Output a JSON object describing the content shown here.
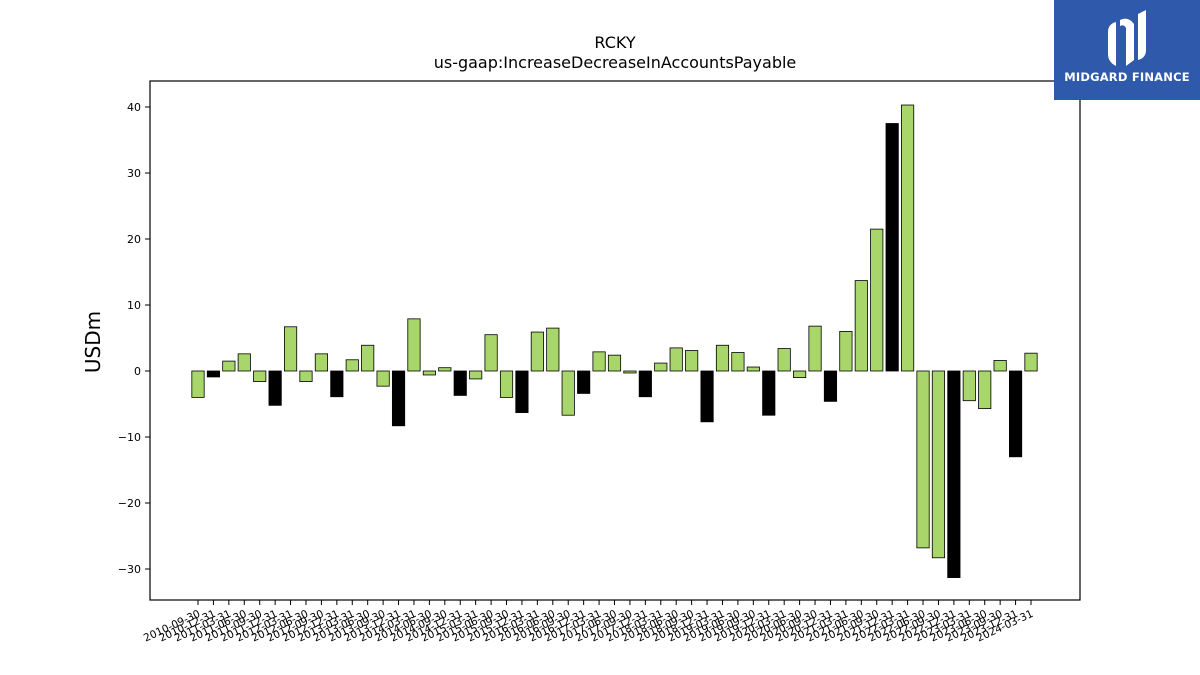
{
  "brand": {
    "name": "MIDGARD FINANCE",
    "bg_color": "#2f5aab"
  },
  "chart_data": {
    "type": "bar",
    "title": "RCKY",
    "subtitle": "us-gaap:IncreaseDecreaseInAccountsPayable",
    "xlabel": "",
    "ylabel": "USDm",
    "ylim": [
      -35,
      44
    ],
    "yticks": [
      40,
      30,
      20,
      10,
      0,
      -10,
      -20,
      -30
    ],
    "ytick_labels": [
      "40",
      "30",
      "20",
      "10",
      "0",
      "−10",
      "−20",
      "−30"
    ],
    "grid": false,
    "colors": {
      "quarterly": "#a9d66a",
      "annual": "#000000"
    },
    "categories": [
      "2010-09-30",
      "2010-12-31",
      "2011-03-31",
      "2011-06-30",
      "2011-09-30",
      "2011-12-31",
      "2012-03-31",
      "2012-06-30",
      "2012-09-30",
      "2012-12-31",
      "2013-03-31",
      "2013-06-30",
      "2013-09-30",
      "2013-12-31",
      "2014-03-31",
      "2014-06-30",
      "2014-09-30",
      "2014-12-31",
      "2015-03-31",
      "2015-06-30",
      "2015-09-30",
      "2015-12-31",
      "2016-03-31",
      "2016-06-30",
      "2016-09-30",
      "2016-12-31",
      "2017-03-31",
      "2017-06-30",
      "2017-09-30",
      "2017-12-31",
      "2018-03-31",
      "2018-06-30",
      "2018-09-30",
      "2018-12-31",
      "2019-03-31",
      "2019-06-30",
      "2019-09-30",
      "2019-12-31",
      "2020-03-31",
      "2020-06-30",
      "2020-09-30",
      "2020-12-31",
      "2021-03-31",
      "2021-06-30",
      "2021-09-30",
      "2021-12-31",
      "2022-03-31",
      "2022-06-30",
      "2022-09-30",
      "2022-12-31",
      "2023-03-31",
      "2023-06-30",
      "2023-09-30",
      "2023-12-31",
      "2024-03-31"
    ],
    "values": [
      -4.0,
      -0.9,
      1.5,
      2.6,
      -1.6,
      -5.2,
      6.7,
      -1.6,
      2.6,
      -3.9,
      1.7,
      3.9,
      -2.3,
      -8.3,
      7.9,
      -0.6,
      0.5,
      -3.7,
      -1.2,
      5.5,
      -4.0,
      -6.3,
      5.9,
      6.5,
      -6.7,
      -3.4,
      2.9,
      2.4,
      -0.3,
      -3.9,
      1.2,
      3.5,
      3.1,
      -7.7,
      3.9,
      2.8,
      0.6,
      -6.7,
      3.4,
      -1.0,
      6.8,
      -4.6,
      6.0,
      13.7,
      21.5,
      37.5,
      40.3,
      -26.8,
      -28.3,
      -31.3,
      -4.5,
      -5.7,
      1.6,
      -13.0,
      2.7
    ],
    "period_type": [
      "q",
      "a",
      "q",
      "q",
      "q",
      "a",
      "q",
      "q",
      "q",
      "a",
      "q",
      "q",
      "q",
      "a",
      "q",
      "q",
      "q",
      "a",
      "q",
      "q",
      "q",
      "a",
      "q",
      "q",
      "q",
      "a",
      "q",
      "q",
      "q",
      "a",
      "q",
      "q",
      "q",
      "a",
      "q",
      "q",
      "q",
      "a",
      "q",
      "q",
      "q",
      "a",
      "q",
      "q",
      "q",
      "a",
      "q",
      "q",
      "q",
      "a",
      "q",
      "q",
      "q",
      "a",
      "q"
    ]
  }
}
